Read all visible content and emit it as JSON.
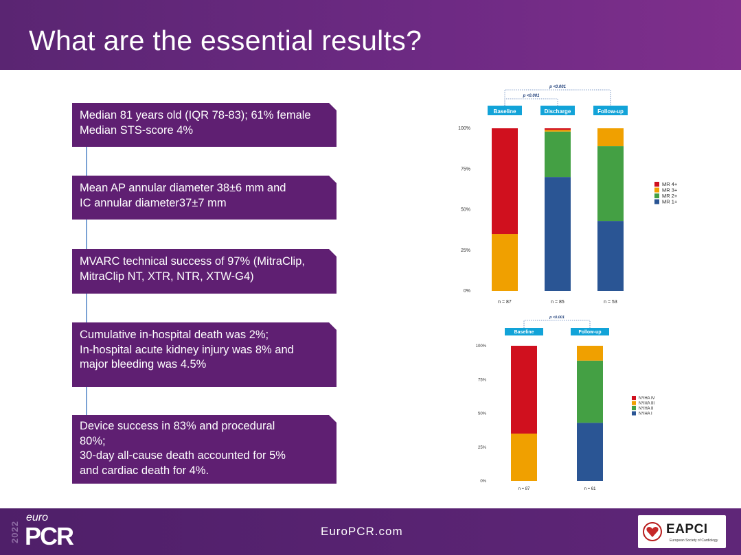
{
  "slide": {
    "title": "What are the essential results?"
  },
  "boxes": [
    {
      "lines": [
        "Median 81 years old (IQR 78-83); 61% female",
        "Median STS-score 4%"
      ]
    },
    {
      "lines": [
        "Mean AP annular diameter 38±6 mm and",
        "IC annular diameter37±7 mm"
      ]
    },
    {
      "lines": [
        "MVARC technical success of 97% (MitraClip,",
        "MitraClip NT, XTR, NTR, XTW-G4)"
      ]
    },
    {
      "lines": [
        "Cumulative in-hospital death was 2%;",
        "In-hospital acute kidney injury was 8% and",
        "major bleeding was 4.5%"
      ]
    },
    {
      "lines": [
        "Device success in 83%  and procedural",
        "80%;",
        "30-day all-cause death accounted for 5%",
        "and cardiac death for 4%."
      ]
    }
  ],
  "chart_data": [
    {
      "type": "bar",
      "stacked": true,
      "categories": [
        "Baseline",
        "Discharge",
        "Follow-up"
      ],
      "n_labels": [
        "n = 87",
        "n = 85",
        "n = 53"
      ],
      "series": [
        {
          "name": "MR 1+",
          "color": "#2a5594",
          "values": [
            0,
            70,
            43
          ]
        },
        {
          "name": "MR 2+",
          "color": "#44a044",
          "values": [
            0,
            28,
            46
          ]
        },
        {
          "name": "MR 3+",
          "color": "#f0a000",
          "values": [
            35,
            1,
            11
          ]
        },
        {
          "name": "MR 4+",
          "color": "#d0101e",
          "values": [
            65,
            1,
            0
          ]
        }
      ],
      "yticks": [
        "0%",
        "25%",
        "50%",
        "75%",
        "100%"
      ],
      "ylim": [
        0,
        100
      ],
      "legend": "right",
      "pvalues": [
        "p <0.001",
        "p <0.001"
      ]
    },
    {
      "type": "bar",
      "stacked": true,
      "categories": [
        "Baseline",
        "Follow-up"
      ],
      "n_labels": [
        "n = 87",
        "n = 61"
      ],
      "series": [
        {
          "name": "NYHA I",
          "color": "#2a5594",
          "values": [
            0,
            43
          ]
        },
        {
          "name": "NYHA II",
          "color": "#44a044",
          "values": [
            0,
            46
          ]
        },
        {
          "name": "NYHA III",
          "color": "#f0a000",
          "values": [
            35,
            11
          ]
        },
        {
          "name": "NYHA IV",
          "color": "#d0101e",
          "values": [
            65,
            0
          ]
        }
      ],
      "yticks": [
        "0%",
        "25%",
        "50%",
        "75%",
        "100%"
      ],
      "ylim": [
        0,
        100
      ],
      "legend": "right",
      "pvalues": [
        "p <0.001"
      ]
    }
  ],
  "footer": {
    "year": "2022",
    "euro": "euro",
    "brand": "PCR",
    "url": "EuroPCR.com",
    "logo_text": "EAPCI",
    "logo_subtext": "European Society of Cardiology"
  }
}
